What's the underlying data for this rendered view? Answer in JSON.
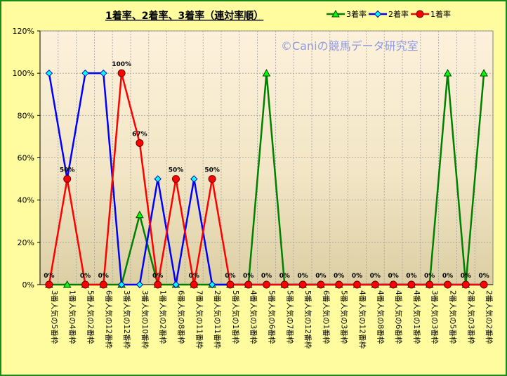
{
  "chart_data": {
    "type": "line",
    "title": "1着率、2着率、3着率（連対率順）",
    "watermark": "©Caniの競馬データ研究室",
    "xlabel": "",
    "ylabel": "",
    "ylim": [
      0,
      120
    ],
    "yticks": [
      "0%",
      "20%",
      "40%",
      "60%",
      "80%",
      "100%",
      "120%"
    ],
    "grid": true,
    "legend_position": "top-right",
    "categories": [
      "3番人気の5番枠",
      "1番人気の4番枠",
      "5番人気の2番枠",
      "6番人気の12番枠",
      "3番人気の12番枠",
      "3番人気の10番枠",
      "1番人気の2番枠",
      "6番人気の8番枠",
      "7番人気の11番枠",
      "2番人気の11番枠",
      "5番人気の1番枠",
      "4番人気の3番枠",
      "5番人気の6番枠",
      "5番人気の7番枠",
      "5番人気の12番枠",
      "6番人気の1番枠",
      "5番人気の3番枠",
      "4番人気の12番枠",
      "4番人気の8番枠",
      "4番人気の6番枠",
      "4番人気の1番枠",
      "3番人気の3番枠",
      "2番人気の5番枠",
      "2番人気の3番枠",
      "2番人気の2番枠"
    ],
    "series": [
      {
        "name": "3着率",
        "color": "#008000",
        "marker": "triangle",
        "values": [
          0,
          0,
          0,
          0,
          0,
          33,
          0,
          0,
          0,
          0,
          0,
          0,
          100,
          0,
          0,
          0,
          0,
          0,
          0,
          0,
          0,
          0,
          100,
          0,
          100
        ]
      },
      {
        "name": "2着率",
        "color": "#0000ff",
        "marker": "diamond",
        "values": [
          100,
          50,
          100,
          100,
          0,
          0,
          50,
          0,
          50,
          0,
          0,
          0,
          0,
          0,
          0,
          0,
          0,
          0,
          0,
          0,
          0,
          0,
          0,
          0,
          0
        ]
      },
      {
        "name": "1着率",
        "color": "#ff0000",
        "marker": "circle",
        "values": [
          0,
          50,
          0,
          0,
          100,
          67,
          0,
          50,
          0,
          50,
          0,
          0,
          0,
          0,
          0,
          0,
          0,
          0,
          0,
          0,
          0,
          0,
          0,
          0,
          0
        ]
      }
    ],
    "data_labels_series": "1着率",
    "data_labels": [
      "0%",
      "50%",
      "0%",
      "0%",
      "100%",
      "67%",
      "0%",
      "50%",
      "0%",
      "50%",
      "0%",
      "0%",
      "0%",
      "0%",
      "0%",
      "0%",
      "0%",
      "0%",
      "0%",
      "0%",
      "0%",
      "0%",
      "0%",
      "0%",
      "0%"
    ]
  }
}
